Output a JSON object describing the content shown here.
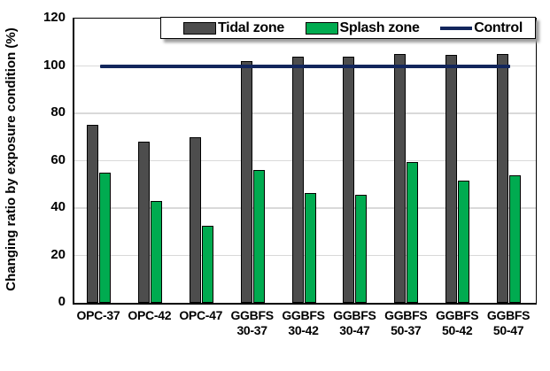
{
  "chart_data": {
    "type": "bar",
    "title": "",
    "xlabel": "",
    "ylabel": "Changing ratio by exposure condition (%)",
    "ylim": [
      0,
      120
    ],
    "yticks": [
      0,
      20,
      40,
      60,
      80,
      100,
      120
    ],
    "grid": "horizontal",
    "gridline_color": "#d9d9d9",
    "legend_position": "top",
    "categories": [
      "OPC-37",
      "OPC-42",
      "OPC-47",
      "GGBFS 30-37",
      "GGBFS 30-42",
      "GGBFS 30-47",
      "GGBFS 50-37",
      "GGBFS 50-42",
      "GGBFS 50-47"
    ],
    "series": [
      {
        "name": "Tidal zone",
        "type": "bar",
        "color": "#4d4d4d",
        "values": [
          75,
          68,
          70,
          102,
          104,
          104,
          105,
          104.5,
          105
        ]
      },
      {
        "name": "Splash zone",
        "type": "bar",
        "color": "#00ab50",
        "values": [
          55,
          43,
          32.5,
          56,
          46.5,
          45.5,
          59.5,
          51.5,
          54
        ]
      },
      {
        "name": "Control",
        "type": "line",
        "color": "#12265c",
        "values": [
          100,
          100,
          100,
          100,
          100,
          100,
          100,
          100,
          100
        ]
      }
    ]
  }
}
